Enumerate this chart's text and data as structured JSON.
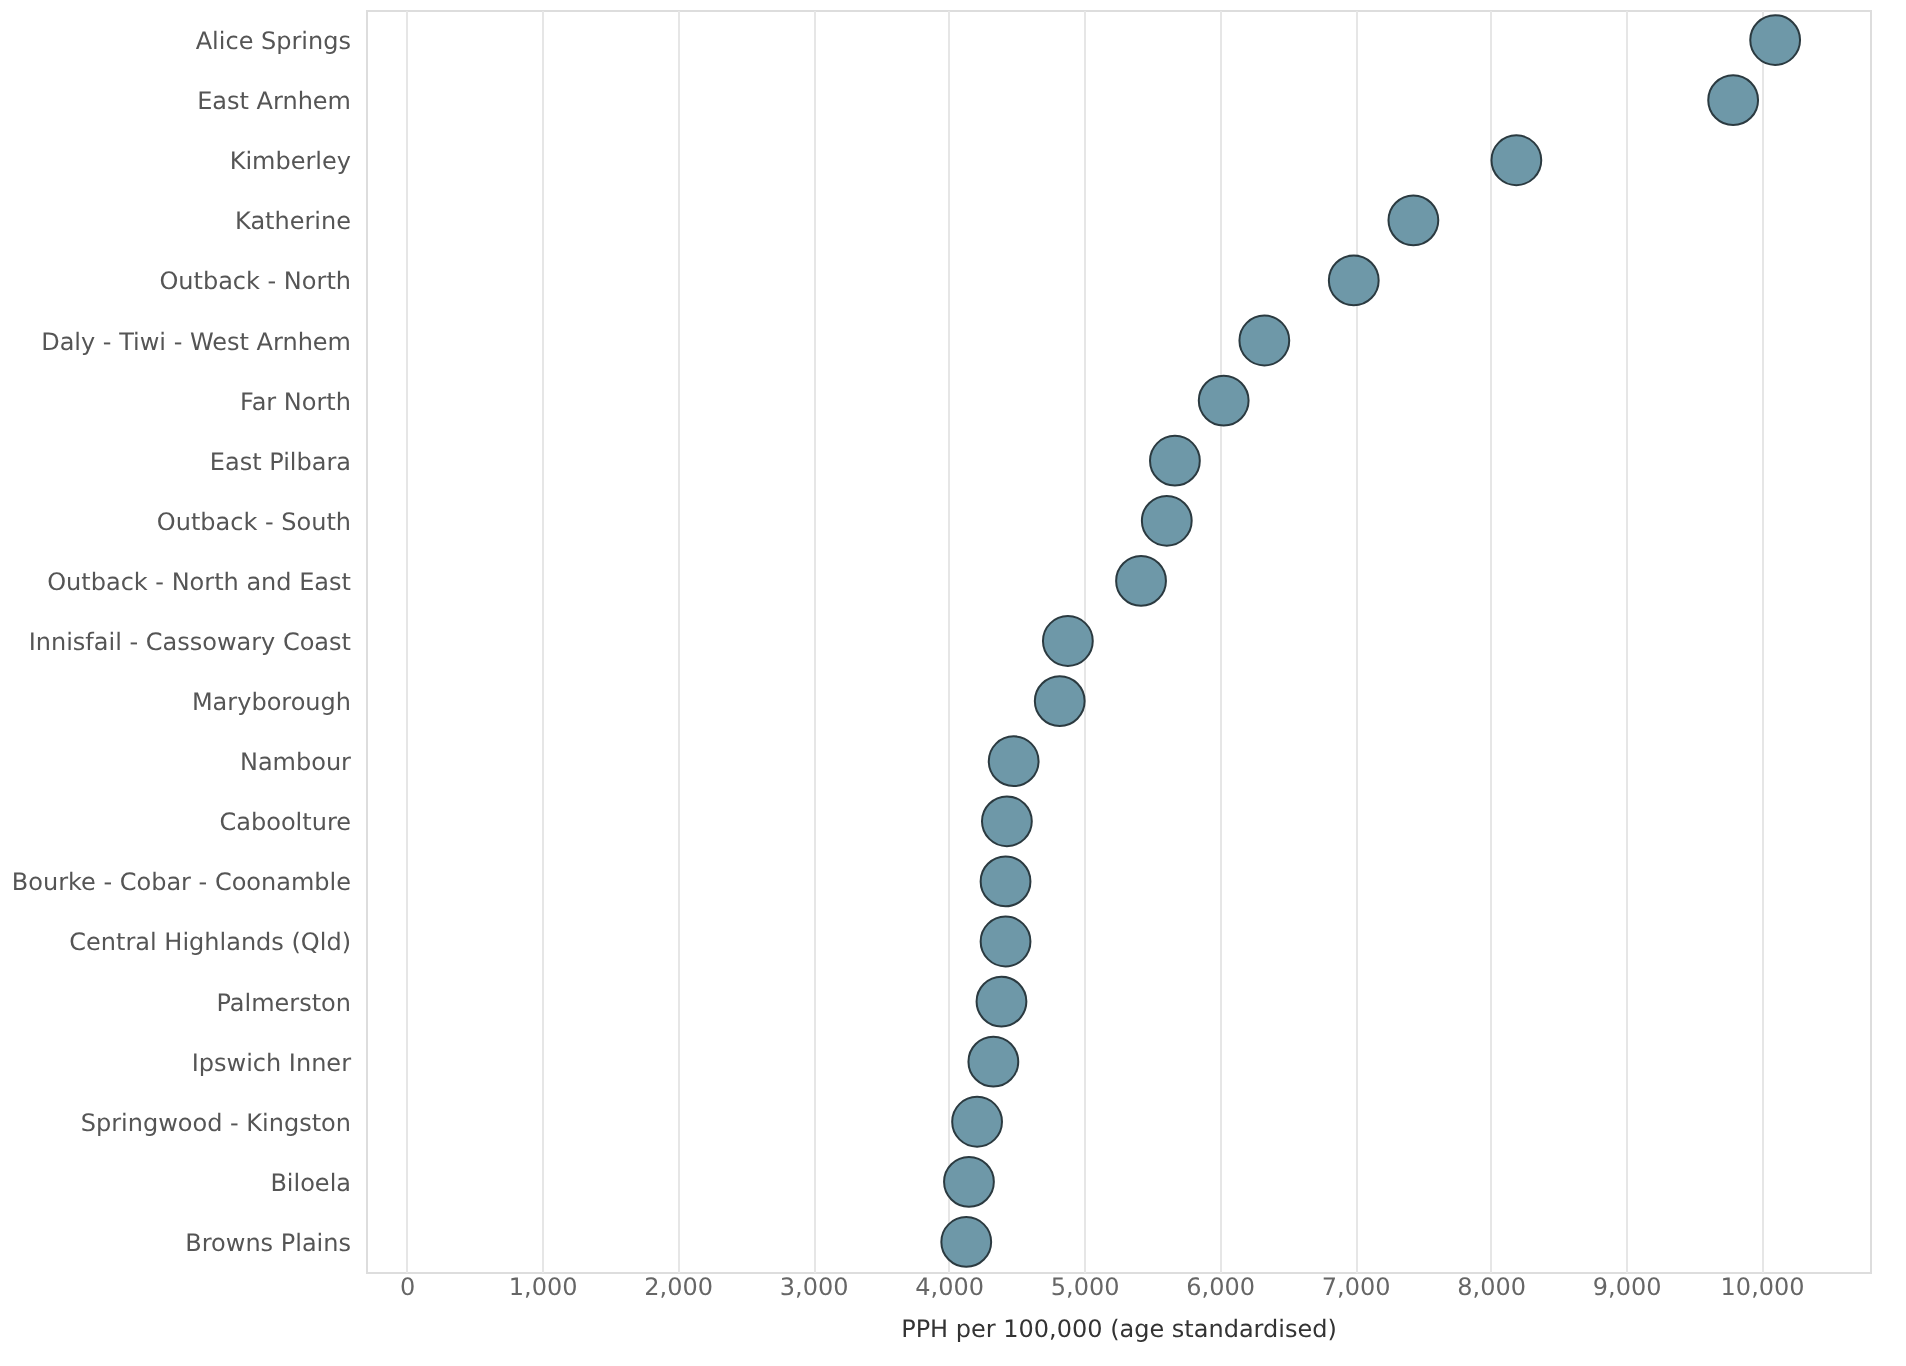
{
  "chart_data": {
    "type": "scatter",
    "orientation": "horizontal",
    "xlabel": "PPH per 100,000 (age standardised)",
    "categories": [
      "Alice Springs",
      "East Arnhem",
      "Kimberley",
      "Katherine",
      "Outback - North",
      "Daly - Tiwi - West Arnhem",
      "Far North",
      "East Pilbara",
      "Outback - South",
      "Outback - North and East",
      "Innisfail - Cassowary Coast",
      "Maryborough",
      "Nambour",
      "Caboolture",
      "Bourke - Cobar - Coonamble",
      "Central Highlands (Qld)",
      "Palmerston",
      "Ipswich Inner",
      "Springwood - Kingston",
      "Biloela",
      "Browns Plains"
    ],
    "values": [
      10100,
      9790,
      8190,
      7430,
      6990,
      6330,
      6030,
      5670,
      5610,
      5420,
      4880,
      4820,
      4480,
      4430,
      4420,
      4420,
      4390,
      4330,
      4210,
      4150,
      4130
    ],
    "color": "#6e98a8",
    "marker": "circle",
    "grid": "x",
    "xlim": [
      -300,
      10800
    ],
    "xticks": [
      0,
      {
        "value": 1000,
        "label": "1,000"
      },
      {
        "value": 2000,
        "label": "2,000"
      },
      {
        "value": 3000,
        "label": "3,000"
      },
      {
        "value": 4000,
        "label": "4,000"
      },
      {
        "value": 5000,
        "label": "5,000"
      },
      {
        "value": 6000,
        "label": "6,000"
      },
      {
        "value": 7000,
        "label": "7,000"
      },
      {
        "value": 8000,
        "label": "8,000"
      },
      {
        "value": 9000,
        "label": "9,000"
      },
      {
        "value": 10000,
        "label": "10,000"
      }
    ]
  }
}
